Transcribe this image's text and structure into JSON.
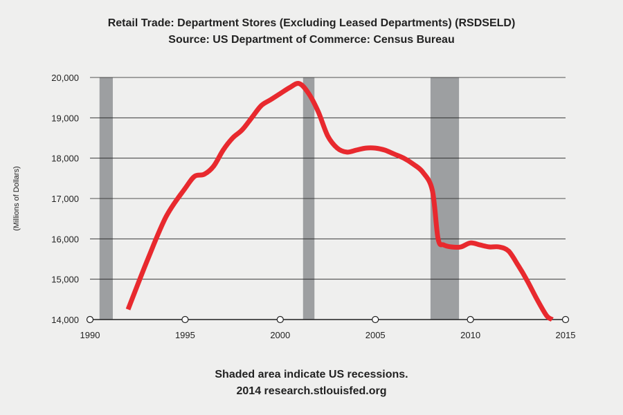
{
  "title": {
    "line1": "Retail Trade: Department Stores (Excluding Leased Departments) (RSDSELD)",
    "line2": "Source: US Department of Commerce: Census Bureau"
  },
  "footer": {
    "line1": "Shaded area indicate US recessions.",
    "line2": "2014 research.stlouisfed.org"
  },
  "colors": {
    "line": "#e8292e",
    "recession": "#9d9fa1",
    "grid": "#1f1f1f",
    "background": "#efefee"
  },
  "chart_data": {
    "type": "line",
    "ylabel": "(Millions of Dollars)",
    "xlim": [
      1990,
      2015
    ],
    "ylim": [
      14000,
      20000
    ],
    "x_ticks": [
      1990,
      1995,
      2000,
      2005,
      2010,
      2015
    ],
    "y_ticks": [
      14000,
      15000,
      16000,
      17000,
      18000,
      19000,
      20000
    ],
    "y_tick_labels": [
      "14,000",
      "15,000",
      "16,000",
      "17,000",
      "18,000",
      "19,000",
      "20,000"
    ],
    "grid": true,
    "recessions": [
      [
        1990.5,
        1991.2
      ],
      [
        2001.2,
        2001.8
      ],
      [
        2007.9,
        2009.4
      ]
    ],
    "series": [
      {
        "x": [
          1992.0,
          1993.0,
          1994.0,
          1995.0,
          1995.5,
          1996.0,
          1996.5,
          1997.0,
          1997.5,
          1998.0,
          1998.5,
          1999.0,
          1999.5,
          2000.0,
          2000.5,
          2001.0,
          2001.5,
          2002.0,
          2002.5,
          2003.0,
          2003.5,
          2004.0,
          2004.5,
          2005.0,
          2005.5,
          2006.0,
          2006.5,
          2007.0,
          2007.5,
          2008.0,
          2008.3,
          2008.6,
          2009.0,
          2009.5,
          2010.0,
          2010.5,
          2011.0,
          2011.5,
          2012.0,
          2012.5,
          2013.0,
          2013.5,
          2014.0,
          2014.3
        ],
        "values": [
          14250,
          15450,
          16550,
          17250,
          17550,
          17600,
          17800,
          18200,
          18500,
          18700,
          19000,
          19300,
          19450,
          19600,
          19750,
          19850,
          19600,
          19150,
          18550,
          18250,
          18150,
          18200,
          18250,
          18250,
          18200,
          18100,
          18000,
          17850,
          17650,
          17200,
          16000,
          15850,
          15800,
          15800,
          15900,
          15850,
          15800,
          15800,
          15700,
          15350,
          14950,
          14500,
          14100,
          14000
        ]
      }
    ]
  }
}
